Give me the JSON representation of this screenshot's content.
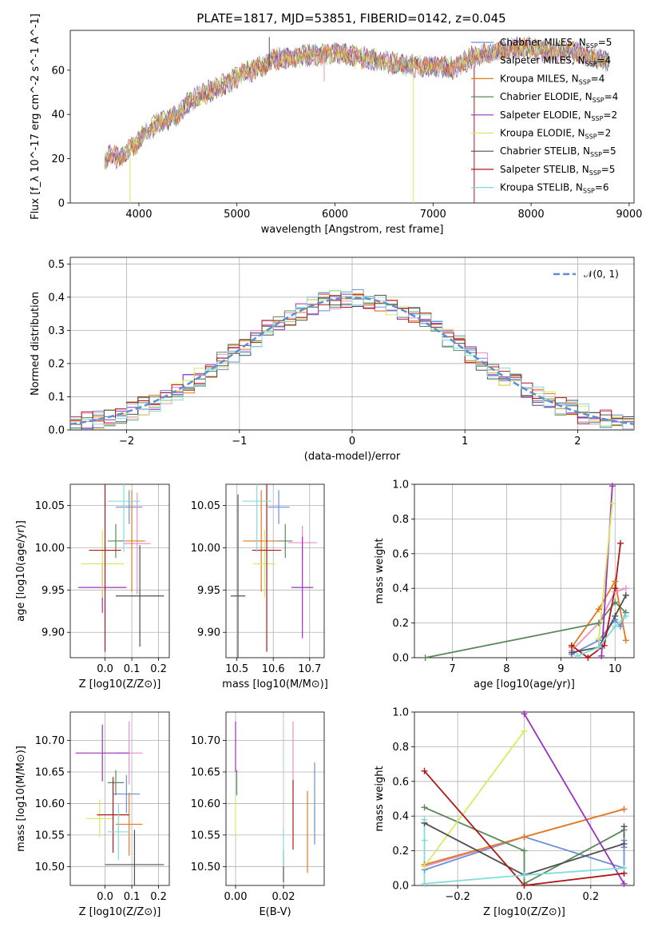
{
  "title": "PLATE=1817, MJD=53851, FIBERID=0142, z=0.045",
  "series": [
    {
      "name": "Chabrier MILES",
      "nssp": "5",
      "color": "#6b8fd6"
    },
    {
      "name": "Salpeter MILES",
      "nssp": "4",
      "color": "#e88fc8"
    },
    {
      "name": "Kroupa MILES",
      "nssp": "4",
      "color": "#e07a1f"
    },
    {
      "name": "Chabrier ELODIE",
      "nssp": "4",
      "color": "#5a8a5a"
    },
    {
      "name": "Salpeter ELODIE",
      "nssp": "2",
      "color": "#9b30c0"
    },
    {
      "name": "Kroupa ELODIE",
      "nssp": "2",
      "color": "#d8e860"
    },
    {
      "name": "Chabrier STELIB",
      "nssp": "5",
      "color": "#505050"
    },
    {
      "name": "Salpeter STELIB",
      "nssp": "5",
      "color": "#b01818"
    },
    {
      "name": "Kroupa STELIB",
      "nssp": "6",
      "color": "#80dcdc"
    }
  ],
  "chart_data": [
    {
      "type": "line",
      "panel": "spectrum",
      "xlabel": "wavelength [Angstrom, rest frame]",
      "ylabel": "Flux [f_λ 10^-17 erg cm^-2 s^-1 A^-1]",
      "xlim": [
        3300,
        9050
      ],
      "ylim": [
        0,
        78
      ],
      "xticks": [
        4000,
        5000,
        6000,
        7000,
        8000,
        9000
      ],
      "yticks": [
        0,
        20,
        40,
        60
      ],
      "x_range_data": [
        3650,
        8800
      ],
      "envelope": [
        [
          3650,
          18
        ],
        [
          3700,
          22
        ],
        [
          3800,
          20
        ],
        [
          3900,
          24
        ],
        [
          4000,
          28
        ],
        [
          4100,
          33
        ],
        [
          4200,
          36
        ],
        [
          4300,
          38
        ],
        [
          4400,
          40
        ],
        [
          4500,
          45
        ],
        [
          4600,
          48
        ],
        [
          4800,
          52
        ],
        [
          5000,
          57
        ],
        [
          5200,
          61
        ],
        [
          5400,
          65
        ],
        [
          5600,
          66
        ],
        [
          5800,
          67
        ],
        [
          6000,
          68
        ],
        [
          6200,
          66
        ],
        [
          6400,
          65
        ],
        [
          6600,
          63
        ],
        [
          6800,
          62
        ],
        [
          7000,
          62
        ],
        [
          7200,
          61
        ],
        [
          7400,
          66
        ],
        [
          7600,
          68
        ],
        [
          7800,
          70
        ],
        [
          8000,
          70
        ],
        [
          8200,
          68
        ],
        [
          8400,
          69
        ],
        [
          8600,
          66
        ],
        [
          8800,
          64
        ]
      ]
    },
    {
      "type": "line",
      "panel": "residual-histogram",
      "xlabel": "(data-model)/error",
      "ylabel": "Normed distribution",
      "xlim": [
        -2.5,
        2.5
      ],
      "ylim": [
        0,
        0.52
      ],
      "xticks": [
        -2,
        -1,
        0,
        1,
        2
      ],
      "yticks": [
        0.0,
        0.1,
        0.2,
        0.3,
        0.4,
        0.5
      ],
      "gaussian_label": "𝒩(0, 1)",
      "gaussian_color": "#5b8ed6"
    },
    {
      "type": "scatter",
      "panel": "age-vs-Z",
      "xlabel": "Z [log10(Z/Z⊙)]",
      "ylabel": "age  [log10(age/yr)]",
      "xlim": [
        -0.13,
        0.24
      ],
      "ylim": [
        9.87,
        10.075
      ],
      "xticks": [
        0.0,
        0.1,
        0.2
      ],
      "yticks": [
        9.9,
        9.95,
        10.0,
        10.05
      ],
      "points": [
        {
          "x": 0.09,
          "y": 10.048,
          "xerr": 0.05,
          "yerr": 0.02
        },
        {
          "x": 0.12,
          "y": 10.005,
          "xerr": 0.05,
          "yerr": 0.06
        },
        {
          "x": 0.1,
          "y": 10.008,
          "xerr": 0.05,
          "yerr": 0.06
        },
        {
          "x": 0.04,
          "y": 10.008,
          "xerr": 0.03,
          "yerr": 0.02
        },
        {
          "x": -0.01,
          "y": 9.953,
          "xerr": 0.09,
          "yerr": 0.03
        },
        {
          "x": -0.01,
          "y": 9.981,
          "xerr": 0.08,
          "yerr": 0.04
        },
        {
          "x": 0.13,
          "y": 9.943,
          "xerr": 0.09,
          "yerr": 0.06
        },
        {
          "x": 0.0,
          "y": 9.997,
          "xerr": 0.06,
          "yerr": 0.12
        },
        {
          "x": 0.07,
          "y": 10.055,
          "xerr": 0.06,
          "yerr": 0.06
        }
      ]
    },
    {
      "type": "scatter",
      "panel": "age-vs-mass",
      "xlabel": "mass [log10(M/M⊙)]",
      "ylabel": "",
      "xlim": [
        10.47,
        10.74
      ],
      "ylim": [
        9.87,
        10.075
      ],
      "xticks": [
        10.5,
        10.6,
        10.7
      ],
      "yticks": [
        9.9,
        9.95,
        10.0,
        10.05
      ],
      "points": [
        {
          "x": 10.615,
          "y": 10.048,
          "xerr": 0.03,
          "yerr": 0.02
        },
        {
          "x": 10.68,
          "y": 10.006,
          "xerr": 0.04,
          "yerr": 0.02
        },
        {
          "x": 10.567,
          "y": 10.008,
          "xerr": 0.05,
          "yerr": 0.06
        },
        {
          "x": 10.633,
          "y": 10.008,
          "xerr": 0.02,
          "yerr": 0.02
        },
        {
          "x": 10.68,
          "y": 9.953,
          "xerr": 0.03,
          "yerr": 0.06
        },
        {
          "x": 10.576,
          "y": 9.981,
          "xerr": 0.03,
          "yerr": 0.04
        },
        {
          "x": 10.503,
          "y": 9.943,
          "xerr": 0.02,
          "yerr": 0.12
        },
        {
          "x": 10.582,
          "y": 9.997,
          "xerr": 0.04,
          "yerr": 0.12
        },
        {
          "x": 10.555,
          "y": 10.055,
          "xerr": 0.04,
          "yerr": 0.06
        }
      ]
    },
    {
      "type": "line",
      "panel": "mass-weight-vs-age",
      "xlabel": "age  [log10(age/yr)]",
      "ylabel": "mass weight",
      "xlim": [
        6.3,
        10.35
      ],
      "ylim": [
        0,
        1.0
      ],
      "xticks": [
        7,
        8,
        9,
        10
      ],
      "yticks": [
        0.0,
        0.2,
        0.4,
        0.6,
        0.8,
        1.0
      ],
      "lines": [
        {
          "x": [
            9.2,
            9.7,
            10.0,
            10.1,
            10.2
          ],
          "y": [
            0.02,
            0.1,
            0.22,
            0.18,
            0.26
          ]
        },
        {
          "x": [
            9.2,
            9.7,
            10.0,
            10.2
          ],
          "y": [
            0.04,
            0.2,
            0.38,
            0.4
          ]
        },
        {
          "x": [
            9.2,
            9.7,
            10.0,
            10.2
          ],
          "y": [
            0.06,
            0.28,
            0.44,
            0.1
          ]
        },
        {
          "x": [
            6.5,
            9.7,
            10.0,
            10.2
          ],
          "y": [
            0.0,
            0.2,
            0.32,
            0.26
          ]
        },
        {
          "x": [
            9.75,
            9.95
          ],
          "y": [
            0.01,
            0.99
          ]
        },
        {
          "x": [
            9.7,
            9.95
          ],
          "y": [
            0.11,
            0.89
          ]
        },
        {
          "x": [
            9.2,
            9.7,
            10.0,
            10.2
          ],
          "y": [
            0.03,
            0.06,
            0.24,
            0.36
          ]
        },
        {
          "x": [
            9.2,
            9.5,
            9.8,
            10.0,
            10.1
          ],
          "y": [
            0.07,
            0.0,
            0.07,
            0.4,
            0.66
          ]
        },
        {
          "x": [
            9.3,
            9.7,
            10.0,
            10.2
          ],
          "y": [
            0.01,
            0.06,
            0.18,
            0.24
          ]
        }
      ]
    },
    {
      "type": "scatter",
      "panel": "mass-vs-Z",
      "xlabel": "Z [log10(Z/Z⊙)]",
      "ylabel": "mass [log10(M/M⊙)]",
      "xlim": [
        -0.13,
        0.24
      ],
      "ylim": [
        10.47,
        10.745
      ],
      "xticks": [
        0.0,
        0.1,
        0.2
      ],
      "yticks": [
        10.5,
        10.55,
        10.6,
        10.65,
        10.7
      ],
      "points": [
        {
          "x": 0.08,
          "y": 10.615,
          "xerr": 0.05,
          "yerr": 0.03
        },
        {
          "x": 0.09,
          "y": 10.68,
          "xerr": 0.05,
          "yerr": 0.05
        },
        {
          "x": 0.09,
          "y": 10.567,
          "xerr": 0.05,
          "yerr": 0.05
        },
        {
          "x": 0.04,
          "y": 10.633,
          "xerr": 0.03,
          "yerr": 0.02
        },
        {
          "x": -0.01,
          "y": 10.68,
          "xerr": 0.1,
          "yerr": 0.045
        },
        {
          "x": -0.02,
          "y": 10.576,
          "xerr": 0.05,
          "yerr": 0.03
        },
        {
          "x": 0.11,
          "y": 10.503,
          "xerr": 0.11,
          "yerr": 0.055
        },
        {
          "x": 0.03,
          "y": 10.582,
          "xerr": 0.06,
          "yerr": 0.06
        },
        {
          "x": 0.05,
          "y": 10.555,
          "xerr": 0.04,
          "yerr": 0.045
        }
      ]
    },
    {
      "type": "scatter",
      "panel": "mass-vs-ebv",
      "xlabel": "E(B-V)",
      "ylabel": "",
      "xlim": [
        -0.004,
        0.037
      ],
      "ylim": [
        10.47,
        10.745
      ],
      "xticks": [
        0.0,
        0.02
      ],
      "yticks": [
        10.5,
        10.55,
        10.6,
        10.65,
        10.7
      ],
      "points": [
        {
          "x": 0.033,
          "y": 10.6,
          "xerr": 0,
          "yerr": 0.065
        },
        {
          "x": 0.024,
          "y": 10.68,
          "xerr": 0,
          "yerr": 0.05
        },
        {
          "x": 0.03,
          "y": 10.555,
          "xerr": 0,
          "yerr": 0.065
        },
        {
          "x": 0.0005,
          "y": 10.633,
          "xerr": 0,
          "yerr": 0.02
        },
        {
          "x": 0.0,
          "y": 10.69,
          "xerr": 0,
          "yerr": 0.04
        },
        {
          "x": 0.0,
          "y": 10.58,
          "xerr": 0,
          "yerr": 0.03
        },
        {
          "x": 0.02,
          "y": 10.5,
          "xerr": 0,
          "yerr": 0.025
        },
        {
          "x": 0.024,
          "y": 10.582,
          "xerr": 0,
          "yerr": 0.055
        },
        {
          "x": 0.02,
          "y": 10.53,
          "xerr": 0,
          "yerr": 0.03
        }
      ]
    },
    {
      "type": "line",
      "panel": "mass-weight-vs-Z",
      "xlabel": "Z [log10(Z/Z⊙)]",
      "ylabel": "mass weight",
      "xlim": [
        -0.33,
        0.33
      ],
      "ylim": [
        0,
        1.0
      ],
      "xticks": [
        -0.2,
        0.0,
        0.2
      ],
      "yticks": [
        0.0,
        0.2,
        0.4,
        0.6,
        0.8,
        1.0
      ],
      "lines": [
        {
          "x": [
            -0.3,
            0.0,
            0.3,
            0.3,
            0.3
          ],
          "y": [
            0.09,
            0.28,
            0.1,
            0.22,
            0.26
          ]
        },
        {
          "x": [
            -0.3,
            0.0,
            0.3
          ],
          "y": [
            0.11,
            0.28,
            0.44
          ]
        },
        {
          "x": [
            -0.3,
            0.0,
            0.3
          ],
          "y": [
            0.12,
            0.28,
            0.44
          ]
        },
        {
          "x": [
            -0.3,
            0.0,
            0.0,
            0.3
          ],
          "y": [
            0.45,
            0.2,
            0.01,
            0.32
          ]
        },
        {
          "x": [
            0.0,
            0.3
          ],
          "y": [
            0.99,
            0.01
          ]
        },
        {
          "x": [
            -0.3,
            0.0
          ],
          "y": [
            0.11,
            0.89
          ]
        },
        {
          "x": [
            -0.3,
            0.0,
            0.3,
            0.3
          ],
          "y": [
            0.36,
            0.06,
            0.24,
            0.34
          ]
        },
        {
          "x": [
            -0.3,
            0.0,
            0.3,
            0.3
          ],
          "y": [
            0.66,
            0.0,
            0.07,
            0.07
          ]
        },
        {
          "x": [
            -0.3,
            -0.3,
            -0.3,
            0.0,
            0.3
          ],
          "y": [
            0.38,
            0.26,
            0.01,
            0.06,
            0.1
          ]
        }
      ]
    }
  ]
}
